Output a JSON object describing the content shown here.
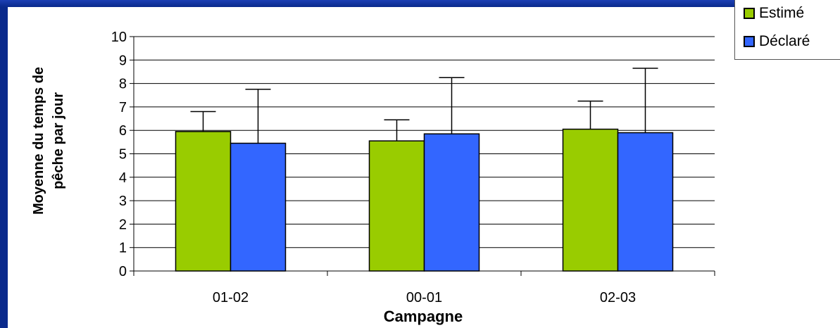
{
  "chart_data": {
    "type": "bar",
    "categories": [
      "01-02",
      "00-01",
      "02-03"
    ],
    "series": [
      {
        "name": "Estimé",
        "color": "#99cc00",
        "values": [
          5.95,
          5.55,
          6.05
        ],
        "error_upper": [
          6.8,
          6.45,
          7.25
        ]
      },
      {
        "name": "Déclaré",
        "color": "#3366ff",
        "values": [
          5.45,
          5.85,
          5.9
        ],
        "error_upper": [
          7.75,
          8.25,
          8.65
        ]
      }
    ],
    "xlabel": "Campagne",
    "ylabel_lines": [
      "Moyenne du temps de",
      "pêche par jour"
    ],
    "ylim": [
      0,
      10
    ],
    "yticks": [
      0,
      1,
      2,
      3,
      4,
      5,
      6,
      7,
      8,
      9,
      10
    ],
    "grid": true,
    "legend_position": "top-right"
  }
}
